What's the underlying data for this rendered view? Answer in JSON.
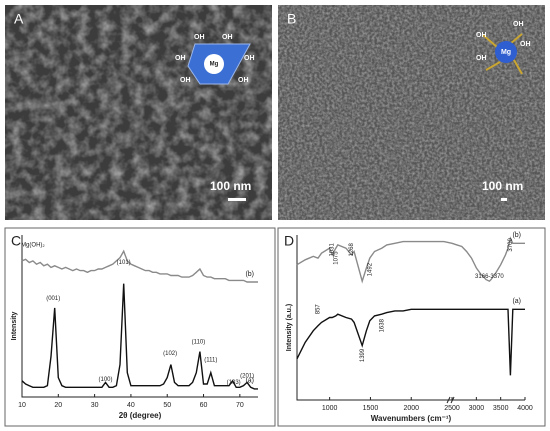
{
  "panels": {
    "A": {
      "label": "A",
      "scale": "100 nm",
      "inset": {
        "center": "Mg",
        "groups": [
          "OH",
          "OH",
          "OH",
          "OH",
          "OH",
          "OH"
        ]
      }
    },
    "B": {
      "label": "B",
      "scale": "100 nm",
      "inset": {
        "center": "Mg",
        "groups": [
          "OH",
          "OH",
          "OH",
          "OH"
        ]
      }
    }
  },
  "chart_data": [
    {
      "type": "line",
      "panel_label": "C",
      "xlabel": "2θ (degree)",
      "ylabel": "Intensity",
      "x": [
        10,
        11,
        12,
        13,
        14,
        15,
        16,
        17,
        18,
        19,
        20,
        21,
        22,
        23,
        24,
        25,
        26,
        27,
        28,
        29,
        30,
        31,
        32,
        33,
        34,
        35,
        36,
        37,
        38,
        39,
        40,
        41,
        42,
        43,
        44,
        45,
        46,
        47,
        48,
        49,
        50,
        51,
        52,
        53,
        54,
        55,
        56,
        57,
        58,
        59,
        60,
        61,
        62,
        63,
        64,
        65,
        66,
        67,
        68,
        69,
        70,
        71,
        72,
        73,
        74,
        75
      ],
      "xlim": [
        10,
        75
      ],
      "xticks": [
        10,
        20,
        30,
        40,
        50,
        60,
        70
      ],
      "ylim": [
        0,
        100
      ],
      "series": [
        {
          "name": "(a)",
          "color": "#111111",
          "values": [
            10,
            8,
            7,
            6,
            6,
            6,
            6,
            7,
            25,
            55,
            12,
            7,
            6,
            6,
            6,
            6,
            6,
            6,
            6,
            6,
            6,
            6,
            6,
            9,
            6,
            6,
            7,
            20,
            70,
            15,
            7,
            7,
            7,
            7,
            7,
            7,
            7,
            7,
            7,
            8,
            12,
            20,
            9,
            7,
            7,
            7,
            7,
            9,
            15,
            28,
            8,
            8,
            15,
            7,
            7,
            7,
            7,
            7,
            10,
            6,
            6,
            7,
            9,
            6,
            5,
            5
          ]
        },
        {
          "name": "(b)",
          "color": "#8a8a8a",
          "values": [
            84,
            85,
            83,
            84,
            82,
            83,
            81,
            82,
            80,
            81,
            80,
            79,
            80,
            79,
            78,
            79,
            78,
            78,
            77,
            78,
            78,
            79,
            79,
            80,
            81,
            82,
            84,
            86,
            90,
            84,
            82,
            81,
            80,
            79,
            78,
            78,
            77,
            77,
            76,
            76,
            76,
            75,
            75,
            75,
            74,
            74,
            74,
            75,
            77,
            79,
            75,
            74,
            74,
            73,
            73,
            73,
            73,
            72,
            72,
            72,
            72,
            72,
            71,
            71,
            71,
            71
          ]
        }
      ],
      "annotations": [
        {
          "text": "Mg(OH)₂",
          "x": 13,
          "y": 94
        },
        {
          "text": "(001)",
          "x": 18.6,
          "y": 61
        },
        {
          "text": "(100)",
          "x": 33,
          "y": 11
        },
        {
          "text": "(101)",
          "x": 38,
          "y": 83
        },
        {
          "text": "(102)",
          "x": 50.8,
          "y": 27
        },
        {
          "text": "(110)",
          "x": 58.6,
          "y": 34
        },
        {
          "text": "(111)",
          "x": 62,
          "y": 23
        },
        {
          "text": "(103)",
          "x": 68.3,
          "y": 9
        },
        {
          "text": "(201)",
          "x": 72,
          "y": 13
        }
      ]
    },
    {
      "type": "line",
      "panel_label": "D",
      "xlabel": "Wavenumbers (cm⁻¹)",
      "ylabel": "Intensity (a.u.)",
      "x": [
        600,
        700,
        800,
        857,
        900,
        1000,
        1031,
        1075,
        1100,
        1200,
        1268,
        1300,
        1399,
        1450,
        1492,
        1550,
        1638,
        1700,
        1800,
        1900,
        2000,
        2100,
        2200,
        2300,
        2400,
        2500,
        2600,
        2700,
        2800,
        2900,
        3000,
        3100,
        3200,
        3268,
        3300,
        3400,
        3500,
        3600,
        3650,
        3700,
        3750,
        3800,
        3900,
        4000
      ],
      "xlim": [
        600,
        4000
      ],
      "xbreak": 2500,
      "xticks": [
        1000,
        1500,
        2000,
        2500,
        3000,
        3500,
        4000
      ],
      "ylim": [
        0,
        100
      ],
      "series": [
        {
          "name": "(a)",
          "color": "#111111",
          "values": [
            25,
            35,
            42,
            45,
            47,
            50,
            50,
            51,
            52,
            50,
            49,
            47,
            33,
            42,
            48,
            51,
            52,
            53,
            54,
            54,
            55,
            55,
            55,
            55,
            55,
            55,
            55,
            55,
            55,
            55,
            55,
            55,
            55,
            55,
            55,
            55,
            55,
            55,
            55,
            15,
            55,
            55,
            55,
            55
          ]
        },
        {
          "name": "(b)",
          "color": "#8a8a8a",
          "values": [
            82,
            85,
            87,
            86,
            89,
            92,
            88,
            92,
            94,
            92,
            88,
            90,
            72,
            80,
            86,
            90,
            92,
            94,
            95,
            96,
            96,
            96,
            96,
            96,
            96,
            95,
            94,
            93,
            90,
            86,
            80,
            76,
            73,
            72,
            73,
            77,
            82,
            88,
            92,
            98,
            95,
            95,
            95,
            95
          ]
        }
      ],
      "annotations": [
        {
          "text": "857",
          "x": 857,
          "y": 55,
          "vertical": true
        },
        {
          "text": "1031",
          "x": 1031,
          "y": 91,
          "vertical": true
        },
        {
          "text": "1075",
          "x": 1075,
          "y": 86,
          "vertical": true
        },
        {
          "text": "1268",
          "x": 1268,
          "y": 91,
          "vertical": true
        },
        {
          "text": "1492",
          "x": 1492,
          "y": 79,
          "vertical": true
        },
        {
          "text": "1399",
          "x": 1399,
          "y": 27,
          "vertical": true
        },
        {
          "text": "1638",
          "x": 1638,
          "y": 45,
          "vertical": true
        },
        {
          "text": "3700",
          "x": 3700,
          "y": 94,
          "vertical": true
        },
        {
          "text": "3166-3370",
          "x": 3268,
          "y": 75
        }
      ]
    }
  ]
}
